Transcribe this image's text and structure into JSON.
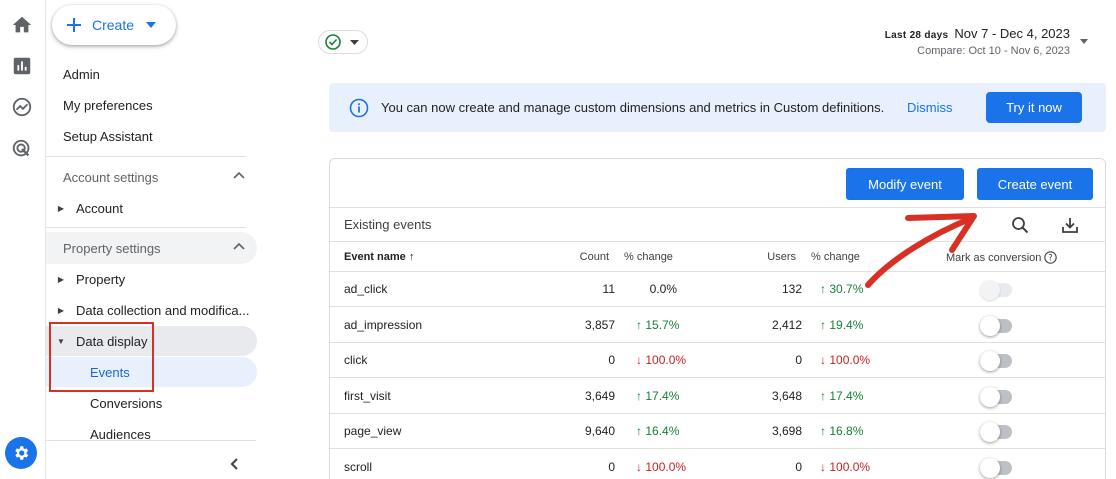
{
  "nav": {
    "create_label": "Create",
    "items": [
      "Admin",
      "My preferences",
      "Setup Assistant"
    ],
    "account_settings": "Account settings",
    "account": "Account",
    "property_settings": "Property settings",
    "property": "Property",
    "data_collection": "Data collection and modifica...",
    "data_display": "Data display",
    "events": "Events",
    "conversions": "Conversions",
    "audiences": "Audiences"
  },
  "date": {
    "tag": "Last 28 days",
    "range": "Nov 7 - Dec 4, 2023",
    "compare": "Compare: Oct 10 - Nov 6, 2023"
  },
  "banner": {
    "message": "You can now create and manage custom dimensions and metrics in Custom definitions.",
    "dismiss": "Dismiss",
    "try": "Try it now"
  },
  "card": {
    "modify": "Modify event",
    "create": "Create event",
    "title": "Existing events",
    "columns": {
      "name": "Event name",
      "count": "Count",
      "count_change": "% change",
      "users": "Users",
      "users_change": "% change",
      "conversion": "Mark as conversion"
    },
    "rows": [
      {
        "name": "ad_click",
        "count": "11",
        "count_change": "0.0%",
        "users": "132",
        "users_change": "30.7%"
      },
      {
        "name": "ad_impression",
        "count": "3,857",
        "count_change": "15.7%",
        "users": "2,412",
        "users_change": "19.4%"
      },
      {
        "name": "click",
        "count": "0",
        "count_change": "100.0%",
        "users": "0",
        "users_change": "100.0%"
      },
      {
        "name": "first_visit",
        "count": "3,649",
        "count_change": "17.4%",
        "users": "3,648",
        "users_change": "17.4%"
      },
      {
        "name": "page_view",
        "count": "9,640",
        "count_change": "16.4%",
        "users": "3,698",
        "users_change": "16.8%"
      },
      {
        "name": "scroll",
        "count": "0",
        "count_change": "100.0%",
        "users": "0",
        "users_change": "100.0%"
      }
    ]
  },
  "colors": {
    "accent": "#1a73e8",
    "up": "#188038",
    "down": "#c5221f",
    "annotation": "#d93025"
  }
}
